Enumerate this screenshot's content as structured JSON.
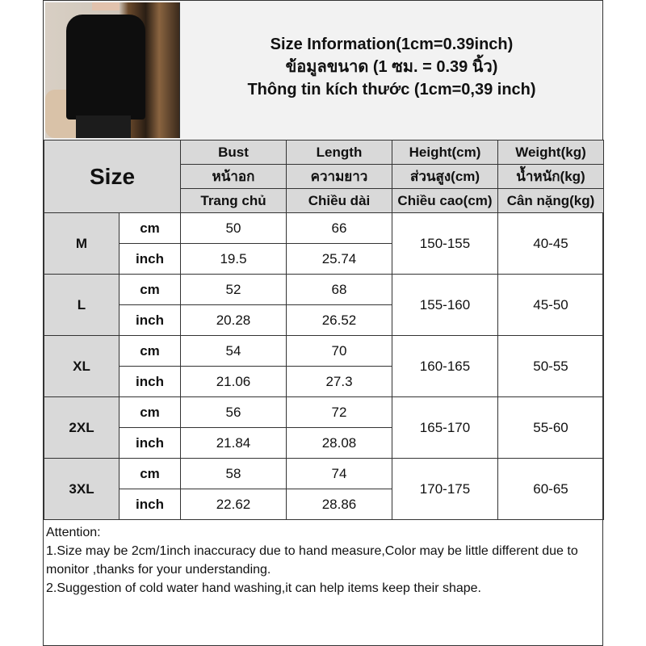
{
  "title": {
    "en": "Size Information(1cm=0.39inch)",
    "th": "ข้อมูลขนาด (1 ซม. = 0.39 นิ้ว)",
    "vi": "Thông tin kích thước (1cm=0,39 inch)"
  },
  "image": "black-tshirt-model-photo",
  "header": {
    "size_label": "Size",
    "columns": [
      {
        "en": "Bust",
        "th": "หน้าอก",
        "vi": "Trang chủ"
      },
      {
        "en": "Length",
        "th": "ความยาว",
        "vi": "Chiều dài"
      },
      {
        "en": "Height(cm)",
        "th": "ส่วนสูง(cm)",
        "vi": "Chiều cao(cm)"
      },
      {
        "en": "Weight(kg)",
        "th": "น้ำหนัก(kg)",
        "vi": "Cân nặng(kg)"
      }
    ]
  },
  "units": {
    "cm": "cm",
    "inch": "inch"
  },
  "rows": [
    {
      "size": "M",
      "bust_cm": "50",
      "length_cm": "66",
      "bust_in": "19.5",
      "length_in": "25.74",
      "height": "150-155",
      "weight": "40-45"
    },
    {
      "size": "L",
      "bust_cm": "52",
      "length_cm": "68",
      "bust_in": "20.28",
      "length_in": "26.52",
      "height": "155-160",
      "weight": "45-50"
    },
    {
      "size": "XL",
      "bust_cm": "54",
      "length_cm": "70",
      "bust_in": "21.06",
      "length_in": "27.3",
      "height": "160-165",
      "weight": "50-55"
    },
    {
      "size": "2XL",
      "bust_cm": "56",
      "length_cm": "72",
      "bust_in": "21.84",
      "length_in": "28.08",
      "height": "165-170",
      "weight": "55-60"
    },
    {
      "size": "3XL",
      "bust_cm": "58",
      "length_cm": "74",
      "bust_in": "22.62",
      "length_in": "28.86",
      "height": "170-175",
      "weight": "60-65"
    }
  ],
  "attention": {
    "heading": "Attention:",
    "note1": "1.Size may be 2cm/1inch inaccuracy due to hand measure,Color may be little different due to monitor ,thanks for your understanding.",
    "note2": "2.Suggestion of cold water hand washing,it can help items keep their shape."
  }
}
